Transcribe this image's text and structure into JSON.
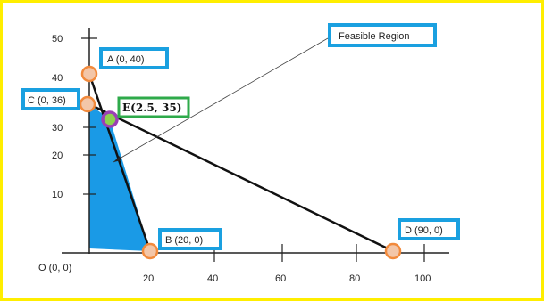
{
  "chart_data": {
    "type": "line",
    "title": "",
    "xlabel": "",
    "ylabel": "",
    "y_ticks": [
      "50",
      "40",
      "30",
      "20",
      "10"
    ],
    "x_ticks": [
      "20",
      "40",
      "60",
      "80",
      "100"
    ],
    "origin_label": "O (0, 0)",
    "series": [
      {
        "points": [
          [
            0,
            40
          ],
          [
            20,
            0
          ]
        ]
      },
      {
        "points": [
          [
            0,
            36
          ],
          [
            90,
            0
          ]
        ]
      }
    ],
    "feasible_region": {
      "label": "Feasible Region",
      "polygon": [
        [
          0,
          0
        ],
        [
          0,
          36
        ],
        [
          2.5,
          35
        ],
        [
          20,
          0
        ]
      ],
      "color": "#1a9ae6"
    },
    "points": [
      {
        "id": "A",
        "label": "A (0, 40)",
        "x": 0,
        "y": 40
      },
      {
        "id": "B",
        "label": "B (20, 0)",
        "x": 20,
        "y": 0
      },
      {
        "id": "C",
        "label": "C (0, 36)",
        "x": 0,
        "y": 36
      },
      {
        "id": "D",
        "label": "D (90, 0)",
        "x": 90,
        "y": 0
      },
      {
        "id": "E",
        "label": "E(2.5, 35)",
        "x": 2.5,
        "y": 35
      }
    ],
    "colors": {
      "frame": "#ffee00",
      "label_border": "#1aa0e0",
      "e_label_border": "#2eaa4a",
      "vertex_fill": "#f3c6a8",
      "vertex_stroke": "#f28a3c",
      "e_fill": "#8fd14f",
      "e_stroke": "#9b3fb5"
    }
  }
}
